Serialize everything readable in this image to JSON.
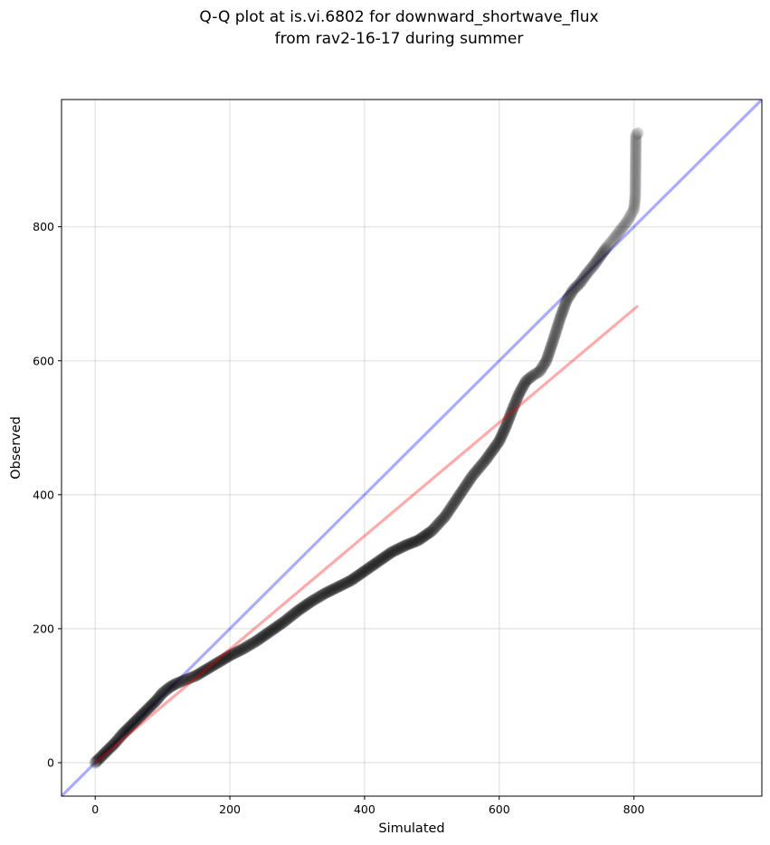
{
  "chart_data": {
    "type": "scatter",
    "title_line1": "Q-Q plot at is.vi.6802 for downward_shortwave_flux",
    "title_line2": "from rav2-16-17 during summer",
    "xlabel": "Simulated",
    "ylabel": "Observed",
    "xlim": [
      -50,
      990
    ],
    "ylim": [
      -50,
      990
    ],
    "x_ticks": [
      "0",
      "200",
      "400",
      "600",
      "800"
    ],
    "y_ticks": [
      "0",
      "200",
      "400",
      "600",
      "800"
    ],
    "grid": true,
    "reference_line": {
      "name": "1:1",
      "color": "#0000ff",
      "x": [
        -50,
        990
      ],
      "y": [
        -50,
        990
      ]
    },
    "fit_line": {
      "name": "fit",
      "color": "#ff0000",
      "x": [
        0,
        806
      ],
      "y": [
        0,
        682
      ]
    },
    "points_color": "#000000",
    "quantile_curve": [
      [
        0,
        0
      ],
      [
        10,
        10
      ],
      [
        20,
        20
      ],
      [
        30,
        30
      ],
      [
        40,
        42
      ],
      [
        50,
        52
      ],
      [
        60,
        62
      ],
      [
        70,
        72
      ],
      [
        80,
        82
      ],
      [
        90,
        92
      ],
      [
        100,
        104
      ],
      [
        110,
        112
      ],
      [
        120,
        118
      ],
      [
        130,
        122
      ],
      [
        140,
        126
      ],
      [
        150,
        130
      ],
      [
        160,
        136
      ],
      [
        170,
        142
      ],
      [
        180,
        148
      ],
      [
        190,
        154
      ],
      [
        200,
        160
      ],
      [
        220,
        170
      ],
      [
        240,
        182
      ],
      [
        260,
        196
      ],
      [
        280,
        210
      ],
      [
        300,
        226
      ],
      [
        320,
        240
      ],
      [
        340,
        252
      ],
      [
        360,
        262
      ],
      [
        380,
        272
      ],
      [
        400,
        286
      ],
      [
        420,
        300
      ],
      [
        440,
        314
      ],
      [
        460,
        324
      ],
      [
        480,
        332
      ],
      [
        500,
        346
      ],
      [
        520,
        368
      ],
      [
        540,
        398
      ],
      [
        560,
        428
      ],
      [
        580,
        452
      ],
      [
        600,
        480
      ],
      [
        610,
        502
      ],
      [
        620,
        528
      ],
      [
        630,
        552
      ],
      [
        640,
        570
      ],
      [
        650,
        578
      ],
      [
        660,
        584
      ],
      [
        670,
        600
      ],
      [
        680,
        630
      ],
      [
        690,
        662
      ],
      [
        700,
        690
      ],
      [
        710,
        706
      ],
      [
        720,
        716
      ],
      [
        730,
        730
      ],
      [
        740,
        742
      ],
      [
        750,
        756
      ],
      [
        760,
        770
      ],
      [
        770,
        782
      ],
      [
        780,
        795
      ],
      [
        790,
        808
      ],
      [
        800,
        826
      ],
      [
        802,
        845
      ],
      [
        803,
        937
      ],
      [
        806,
        940
      ]
    ]
  }
}
